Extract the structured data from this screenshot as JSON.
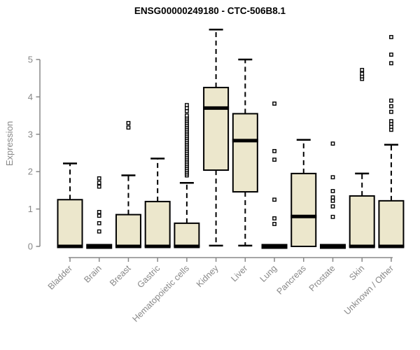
{
  "chart_data": {
    "type": "boxplot",
    "title": "ENSG00000249180 - CTC-506B8.1",
    "ylabel": "Expression",
    "xlabel": "",
    "y_ticks": [
      0,
      1,
      2,
      3,
      4,
      5
    ],
    "ylim": [
      0,
      5.9
    ],
    "grid": "off",
    "colors": {
      "box_fill": "#ECE7CC",
      "box_border": "#000000",
      "axis": "#888888",
      "tick_label": "#888888",
      "title": "#000000",
      "background": "#ffffff"
    },
    "categories": [
      "Bladder",
      "Brain",
      "Breast",
      "Gastric",
      "Hematopoietic cells",
      "Kidney",
      "Liver",
      "Lung",
      "Pancreas",
      "Prostate",
      "Skin",
      "Unknown / Other"
    ],
    "boxes": [
      {
        "label": "Bladder",
        "whisker_low": 0,
        "q1": 0,
        "median": 0,
        "q3": 1.25,
        "whisker_high": 2.22,
        "outliers": []
      },
      {
        "label": "Brain",
        "whisker_low": 0,
        "q1": 0,
        "median": 0,
        "q3": 0,
        "whisker_high": 0,
        "outliers": [
          0.4,
          0.62,
          0.82,
          0.92,
          1.6,
          1.7,
          1.82
        ]
      },
      {
        "label": "Breast",
        "whisker_low": 0,
        "q1": 0,
        "median": 0,
        "q3": 0.85,
        "whisker_high": 1.9,
        "outliers": [
          3.18,
          3.3
        ]
      },
      {
        "label": "Gastric",
        "whisker_low": 0,
        "q1": 0,
        "median": 0,
        "q3": 1.2,
        "whisker_high": 2.35,
        "outliers": []
      },
      {
        "label": "Hematopoietic cells",
        "whisker_low": 0,
        "q1": 0,
        "median": 0,
        "q3": 0.62,
        "whisker_high": 1.7,
        "outliers": [
          1.9,
          1.95,
          2.0,
          2.05,
          2.1,
          2.15,
          2.2,
          2.25,
          2.3,
          2.35,
          2.4,
          2.45,
          2.5,
          2.55,
          2.6,
          2.65,
          2.7,
          2.75,
          2.8,
          2.85,
          2.9,
          2.95,
          3.0,
          3.05,
          3.1,
          3.15,
          3.2,
          3.25,
          3.3,
          3.35,
          3.4,
          3.45,
          3.5,
          3.62,
          3.7,
          3.78
        ]
      },
      {
        "label": "Kidney",
        "whisker_low": 0.02,
        "q1": 2.04,
        "median": 3.7,
        "q3": 4.25,
        "whisker_high": 5.8,
        "outliers": []
      },
      {
        "label": "Liver",
        "whisker_low": 0.02,
        "q1": 1.46,
        "median": 2.83,
        "q3": 3.55,
        "whisker_high": 5.0,
        "outliers": []
      },
      {
        "label": "Lung",
        "whisker_low": 0,
        "q1": 0,
        "median": 0,
        "q3": 0,
        "whisker_high": 0,
        "outliers": [
          0.6,
          0.75,
          1.25,
          2.32,
          2.55,
          3.82
        ]
      },
      {
        "label": "Pancreas",
        "whisker_low": 0,
        "q1": 0,
        "median": 0.8,
        "q3": 1.95,
        "whisker_high": 2.85,
        "outliers": []
      },
      {
        "label": "Prostate",
        "whisker_low": 0,
        "q1": 0,
        "median": 0,
        "q3": 0,
        "whisker_high": 0,
        "outliers": [
          0.79,
          1.07,
          1.22,
          1.31,
          1.48,
          1.85,
          2.75
        ]
      },
      {
        "label": "Skin",
        "whisker_low": 0,
        "q1": 0,
        "median": 0,
        "q3": 1.35,
        "whisker_high": 1.95,
        "outliers": [
          4.48,
          4.55,
          4.62,
          4.72
        ]
      },
      {
        "label": "Unknown / Other",
        "whisker_low": 0,
        "q1": 0,
        "median": 0,
        "q3": 1.22,
        "whisker_high": 2.72,
        "outliers": [
          3.12,
          3.2,
          3.28,
          3.35,
          3.6,
          3.75,
          3.9,
          4.9,
          5.13,
          5.6
        ]
      }
    ]
  }
}
